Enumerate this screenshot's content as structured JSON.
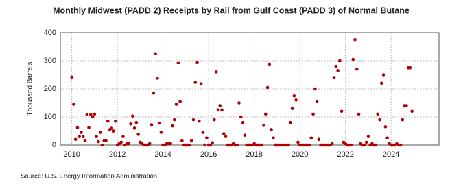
{
  "chart_data": {
    "type": "scatter",
    "title": "Monthly Midwest (PADD 2) Receipts by Rail from Gulf Coast (PADD 3) of Normal Butane",
    "y_label": "Thousand Barrels",
    "source": "Source: U.S. Energy Information Administration",
    "xlim": [
      2009.5,
      2026.1
    ],
    "xticks": [
      2010,
      2012,
      2014,
      2016,
      2018,
      2020,
      2022,
      2024
    ],
    "ylim": [
      0,
      400
    ],
    "yticks": [
      0,
      100,
      200,
      300,
      400
    ],
    "grid": true,
    "series": [
      {
        "color": "#b00000",
        "x": [
          2010,
          2010.083,
          2010.167,
          2010.25,
          2010.333,
          2010.417,
          2010.5,
          2010.583,
          2010.667,
          2010.75,
          2010.833,
          2010.917,
          2011,
          2011.083,
          2011.167,
          2011.25,
          2011.333,
          2011.417,
          2011.5,
          2011.583,
          2011.667,
          2011.75,
          2011.833,
          2011.917,
          2012,
          2012.083,
          2012.167,
          2012.25,
          2012.333,
          2012.417,
          2012.5,
          2012.583,
          2012.667,
          2012.75,
          2012.833,
          2012.917,
          2013,
          2013.083,
          2013.167,
          2013.25,
          2013.333,
          2013.417,
          2013.5,
          2013.583,
          2013.667,
          2013.75,
          2013.833,
          2013.917,
          2014,
          2014.083,
          2014.167,
          2014.25,
          2014.333,
          2014.417,
          2014.5,
          2014.583,
          2014.667,
          2014.75,
          2014.833,
          2014.917,
          2015,
          2015.083,
          2015.167,
          2015.25,
          2015.333,
          2015.417,
          2015.5,
          2015.583,
          2015.667,
          2015.75,
          2015.833,
          2015.917,
          2016,
          2016.083,
          2016.167,
          2016.25,
          2016.333,
          2016.417,
          2016.5,
          2016.583,
          2016.667,
          2016.75,
          2016.833,
          2016.917,
          2017,
          2017.083,
          2017.167,
          2017.25,
          2017.333,
          2017.417,
          2017.5,
          2017.583,
          2017.667,
          2017.75,
          2017.833,
          2017.917,
          2018,
          2018.083,
          2018.167,
          2018.25,
          2018.333,
          2018.417,
          2018.5,
          2018.583,
          2018.667,
          2018.75,
          2018.833,
          2018.917,
          2019,
          2019.083,
          2019.167,
          2019.25,
          2019.333,
          2019.417,
          2019.5,
          2019.583,
          2019.667,
          2019.75,
          2019.833,
          2019.917,
          2020,
          2020.083,
          2020.167,
          2020.25,
          2020.333,
          2020.417,
          2020.5,
          2020.583,
          2020.667,
          2020.75,
          2020.833,
          2020.917,
          2021,
          2021.083,
          2021.167,
          2021.25,
          2021.333,
          2021.417,
          2021.5,
          2021.583,
          2021.667,
          2021.75,
          2021.833,
          2021.917,
          2022,
          2022.083,
          2022.167,
          2022.25,
          2022.333,
          2022.417,
          2022.5,
          2022.583,
          2022.667,
          2022.75,
          2022.833,
          2022.917,
          2023,
          2023.083,
          2023.167,
          2023.25,
          2023.333,
          2023.417,
          2023.5,
          2023.583,
          2023.667,
          2023.75,
          2023.833,
          2023.917,
          2024,
          2024.083,
          2024.167,
          2024.25,
          2024.333,
          2024.417,
          2024.5,
          2024.583,
          2024.667,
          2024.75,
          2024.833,
          2024.917
        ],
        "values": [
          242,
          145,
          20,
          62,
          30,
          45,
          30,
          15,
          108,
          62,
          108,
          100,
          110,
          30,
          12,
          45,
          0,
          15,
          15,
          85,
          55,
          60,
          50,
          85,
          0,
          5,
          10,
          30,
          0,
          5,
          5,
          75,
          103,
          60,
          80,
          38,
          10,
          5,
          0,
          0,
          0,
          5,
          72,
          185,
          325,
          238,
          78,
          45,
          0,
          0,
          5,
          5,
          5,
          68,
          90,
          145,
          293,
          155,
          15,
          0,
          0,
          0,
          0,
          15,
          90,
          223,
          295,
          85,
          218,
          45,
          0,
          25,
          0,
          0,
          8,
          90,
          260,
          125,
          140,
          125,
          40,
          30,
          0,
          0,
          0,
          5,
          0,
          0,
          150,
          100,
          80,
          35,
          0,
          0,
          0,
          0,
          5,
          0,
          0,
          0,
          0,
          70,
          110,
          205,
          288,
          55,
          25,
          0,
          0,
          0,
          0,
          0,
          0,
          0,
          0,
          80,
          130,
          175,
          160,
          10,
          0,
          0,
          0,
          0,
          0,
          0,
          25,
          110,
          200,
          155,
          20,
          0,
          0,
          0,
          0,
          0,
          0,
          5,
          240,
          280,
          265,
          300,
          120,
          10,
          5,
          0,
          0,
          0,
          305,
          375,
          270,
          110,
          5,
          0,
          0,
          10,
          30,
          0,
          5,
          0,
          0,
          110,
          90,
          220,
          250,
          65,
          25,
          5,
          0,
          0,
          0,
          5,
          0,
          0,
          90,
          140,
          140,
          275,
          275,
          120
        ]
      }
    ]
  }
}
